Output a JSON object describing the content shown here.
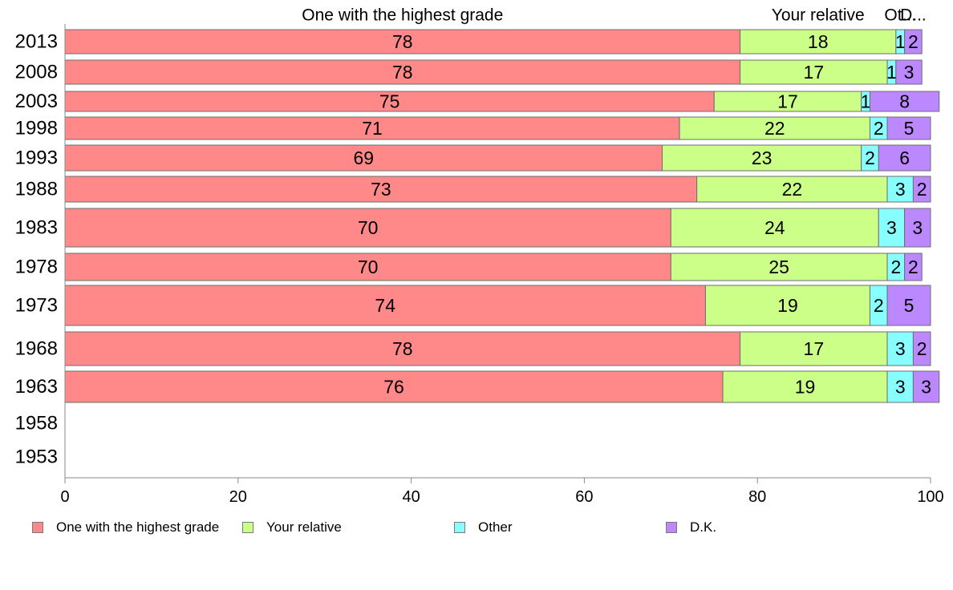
{
  "chart_data": {
    "type": "bar",
    "orientation": "horizontal",
    "stacked": true,
    "categories": [
      "2013",
      "2008",
      "2003",
      "1998",
      "1993",
      "1988",
      "1983",
      "1978",
      "1973",
      "1968",
      "1963",
      "1958",
      "1953"
    ],
    "series": [
      {
        "name": "One with the highest grade",
        "color": "#ff8888",
        "values": [
          78,
          78,
          75,
          71,
          69,
          73,
          70,
          70,
          74,
          78,
          76,
          null,
          null
        ]
      },
      {
        "name": "Your relative",
        "color": "#ccff88",
        "values": [
          18,
          17,
          17,
          22,
          23,
          22,
          24,
          25,
          19,
          17,
          19,
          null,
          null
        ]
      },
      {
        "name": "Other",
        "color": "#88ffff",
        "values": [
          1,
          1,
          1,
          2,
          2,
          3,
          3,
          2,
          2,
          3,
          3,
          null,
          null
        ]
      },
      {
        "name": "D.K.",
        "color": "#bb88ff",
        "values": [
          2,
          3,
          8,
          5,
          6,
          2,
          3,
          2,
          5,
          2,
          3,
          null,
          null
        ]
      }
    ],
    "top_labels": [
      "One with the highest grade",
      "Your relative",
      "Ot...",
      "D..."
    ],
    "xlim": [
      0,
      100
    ],
    "xticks": [
      "0",
      "20",
      "40",
      "60",
      "80",
      "100"
    ],
    "xlabel": "",
    "ylabel": "",
    "title": "",
    "legend_position": "bottom",
    "grid": false
  }
}
